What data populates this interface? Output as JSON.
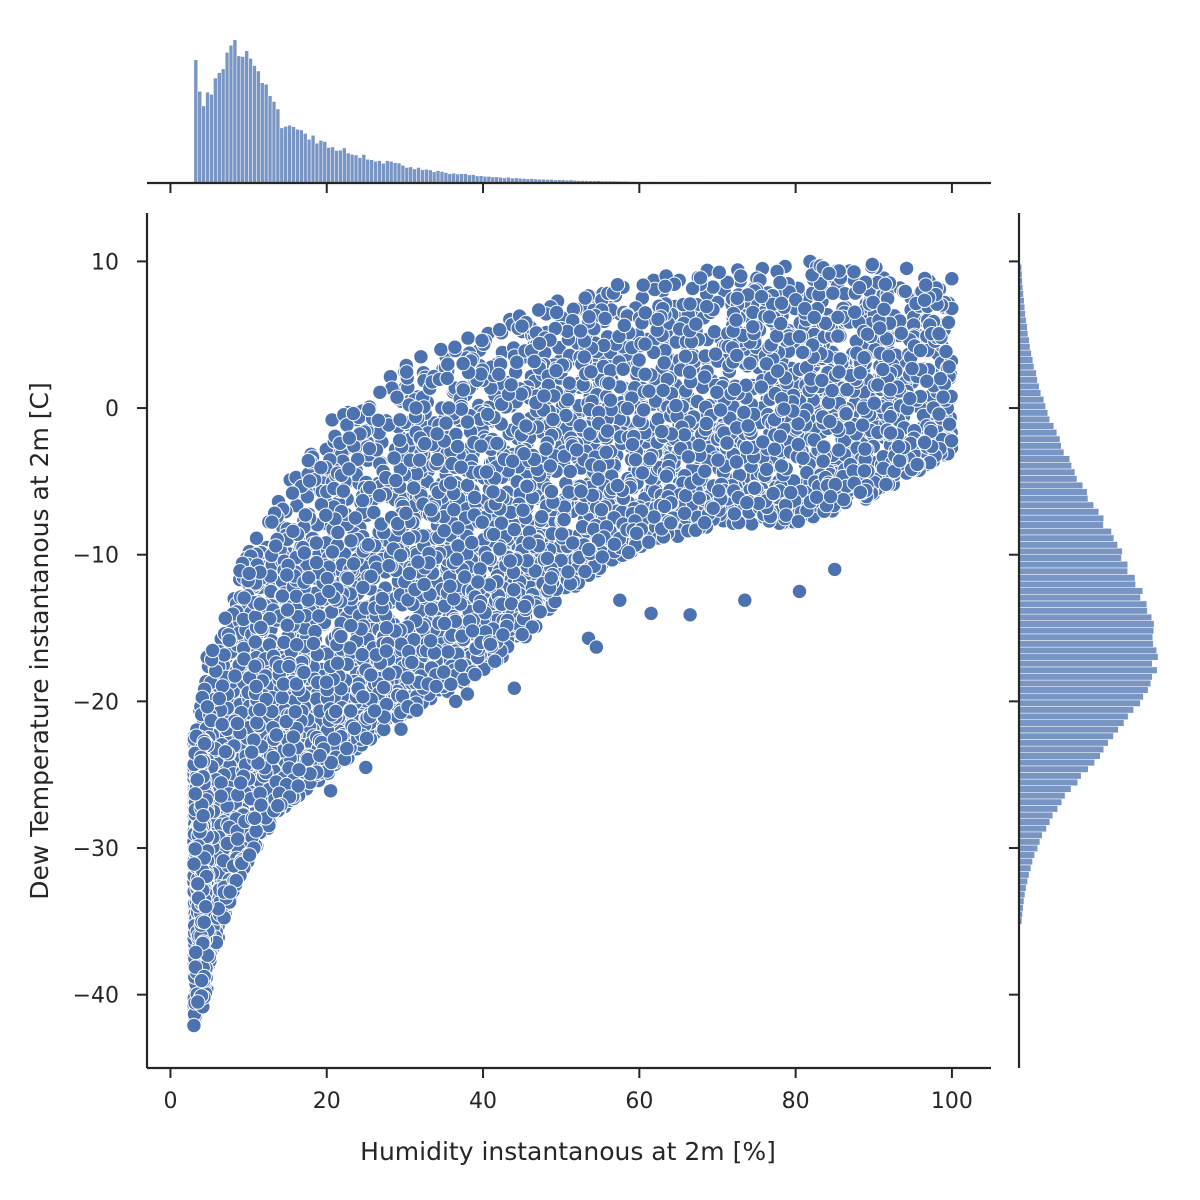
{
  "chart_data": {
    "type": "scatter",
    "subtype": "jointplot-with-marginal-histograms",
    "xlabel": "Humidity instantanous at 2m [%]",
    "ylabel": "Dew Temperature instantanous at 2m [C]",
    "xlim": [
      -3,
      105
    ],
    "ylim": [
      -45,
      13.3
    ],
    "xticks": [
      0,
      20,
      40,
      60,
      80,
      100
    ],
    "yticks": [
      -40,
      -30,
      -20,
      -10,
      0,
      10
    ],
    "xtick_labels": [
      "0",
      "20",
      "40",
      "60",
      "80",
      "100"
    ],
    "ytick_labels": [
      "−40",
      "−30",
      "−20",
      "−10",
      "0",
      "10"
    ],
    "grid": false,
    "point_color": "#4c72b0",
    "point_edge_color": "#ffffff",
    "bar_color": "#4c72b0",
    "scatter": {
      "description_of_envelope": {
        "upper_edge": [
          [
            3,
            -22
          ],
          [
            5,
            -16
          ],
          [
            10,
            -9
          ],
          [
            15,
            -5
          ],
          [
            20,
            -1
          ],
          [
            25,
            1
          ],
          [
            30,
            3
          ],
          [
            40,
            5.5
          ],
          [
            50,
            7.5
          ],
          [
            60,
            9
          ],
          [
            70,
            9.5
          ],
          [
            80,
            10.3
          ],
          [
            90,
            10
          ],
          [
            100,
            9
          ]
        ],
        "lower_edge": [
          [
            3,
            -42
          ],
          [
            5,
            -38
          ],
          [
            8,
            -33
          ],
          [
            12,
            -29
          ],
          [
            15,
            -27
          ],
          [
            20,
            -25
          ],
          [
            30,
            -21
          ],
          [
            40,
            -18
          ],
          [
            45,
            -16
          ],
          [
            50,
            -13
          ],
          [
            55,
            -11
          ],
          [
            60,
            -9.5
          ],
          [
            70,
            -8
          ],
          [
            80,
            -8
          ],
          [
            90,
            -6
          ],
          [
            100,
            -3
          ]
        ]
      },
      "outliers": [
        {
          "x": 3,
          "y": -42.1
        },
        {
          "x": 3.5,
          "y": -40.5
        },
        {
          "x": 20.5,
          "y": -26.1
        },
        {
          "x": 36.5,
          "y": -20
        },
        {
          "x": 38,
          "y": -19.5
        },
        {
          "x": 44,
          "y": -19.1
        },
        {
          "x": 53.5,
          "y": -15.7
        },
        {
          "x": 54.5,
          "y": -16.3
        },
        {
          "x": 57.5,
          "y": -13.1
        },
        {
          "x": 61.5,
          "y": -14
        },
        {
          "x": 66.5,
          "y": -14.1
        },
        {
          "x": 73.5,
          "y": -13.1
        },
        {
          "x": 80.5,
          "y": -12.5
        },
        {
          "x": 85,
          "y": -11
        },
        {
          "x": 29.5,
          "y": -21.9
        },
        {
          "x": 31.5,
          "y": -20.6
        },
        {
          "x": 25,
          "y": -24.5
        }
      ]
    },
    "marginal_x_histogram": {
      "x_start": 3,
      "x_end": 100,
      "bin_width": 0.5,
      "peak_heights_relative": [
        {
          "x": 3.0,
          "h": 0.88
        },
        {
          "x": 4.0,
          "h": 0.56
        },
        {
          "x": 5.0,
          "h": 0.66
        },
        {
          "x": 6.0,
          "h": 0.86
        },
        {
          "x": 7.0,
          "h": 0.9
        },
        {
          "x": 8.0,
          "h": 0.98
        },
        {
          "x": 8.5,
          "h": 1.0
        },
        {
          "x": 9.0,
          "h": 0.93
        },
        {
          "x": 10.0,
          "h": 0.86
        },
        {
          "x": 11.0,
          "h": 0.78
        },
        {
          "x": 12.0,
          "h": 0.73
        },
        {
          "x": 13.0,
          "h": 0.58
        },
        {
          "x": 14.0,
          "h": 0.43
        },
        {
          "x": 15.0,
          "h": 0.39
        },
        {
          "x": 17.0,
          "h": 0.34
        },
        {
          "x": 20.0,
          "h": 0.27
        },
        {
          "x": 25.0,
          "h": 0.18
        },
        {
          "x": 30.0,
          "h": 0.12
        },
        {
          "x": 35.0,
          "h": 0.075
        },
        {
          "x": 40.0,
          "h": 0.048
        },
        {
          "x": 45.0,
          "h": 0.032
        },
        {
          "x": 50.0,
          "h": 0.022
        },
        {
          "x": 55.0,
          "h": 0.015
        },
        {
          "x": 60.0,
          "h": 0.01
        },
        {
          "x": 70.0,
          "h": 0.006
        },
        {
          "x": 80.0,
          "h": 0.004
        },
        {
          "x": 90.0,
          "h": 0.003
        },
        {
          "x": 100.0,
          "h": 0.002
        }
      ]
    },
    "marginal_y_histogram": {
      "y_start": -35.2,
      "y_end": 9.5,
      "bin_width": 0.45,
      "shape": {
        "mode_y": -17,
        "mode_relative_height": 1.0,
        "spread_below": 6.5,
        "spread_above": 9.5
      }
    }
  }
}
